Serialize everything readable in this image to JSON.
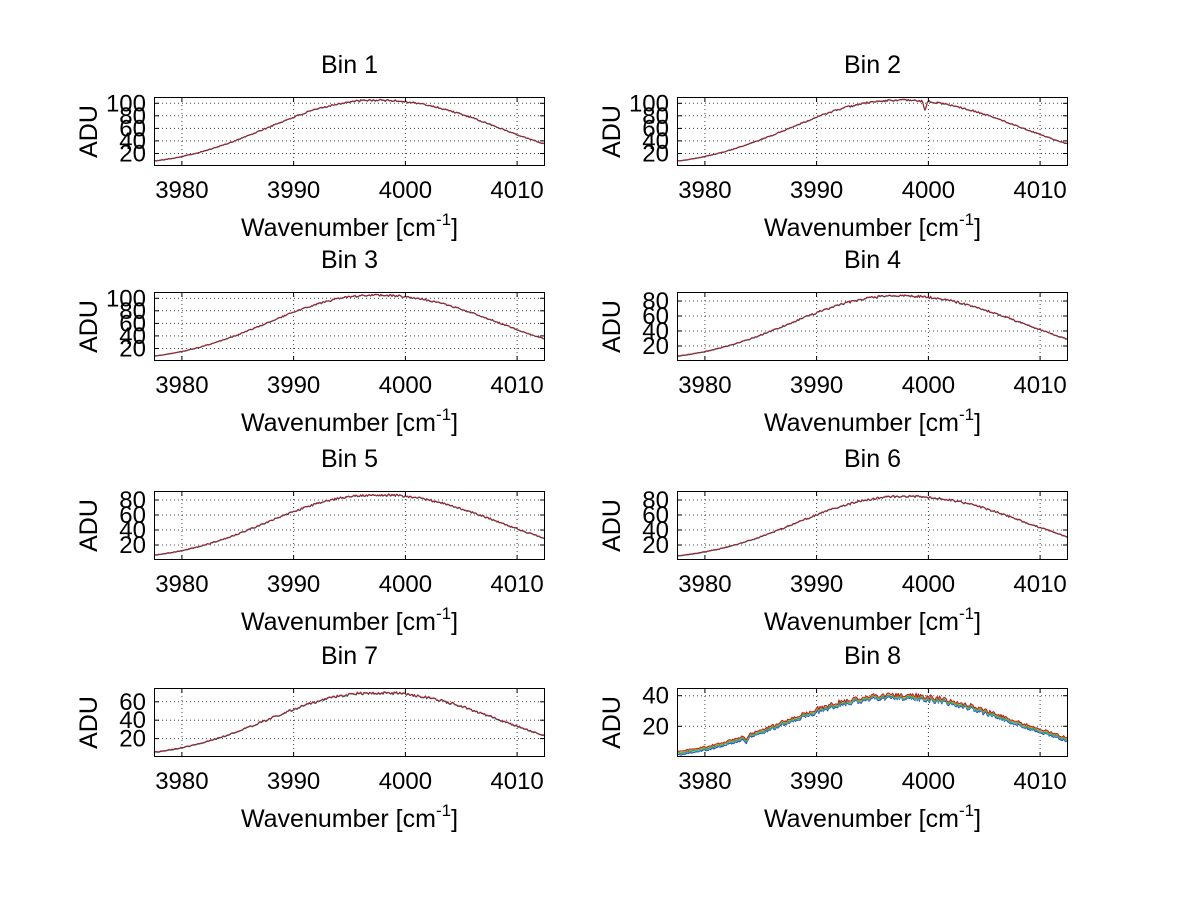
{
  "chart_data": {
    "type": "line",
    "layout": {
      "rows": 4,
      "cols": 2,
      "grid": true,
      "grid_style": "dotted",
      "background": "#ffffff",
      "legend": "none"
    },
    "xlabel_display": "Wavenumber [cm⁻¹]",
    "xlabel_parts": {
      "base": "Wavenumber [cm",
      "superscript": "-1",
      "close": "]"
    },
    "ylabel": "ADU",
    "xlim": [
      3977.5,
      4012.5
    ],
    "xticks": [
      3980,
      3990,
      4000,
      4010
    ],
    "curve_model": {
      "shape": "flat-top gaussian with noise",
      "center": 3997.5,
      "sigma_left": 9.5,
      "sigma_right": 10.5,
      "exponent": 2.2,
      "noise_adu_at_peak": 1.5
    },
    "traces_main": [
      {
        "name": "cyan-trace",
        "color": "#20b2b2",
        "dy": -0.5
      },
      {
        "name": "green-trace",
        "color": "#22992e",
        "dy": -0.35
      },
      {
        "name": "blue-trace",
        "color": "#2828b8",
        "dy": -0.18
      },
      {
        "name": "red-trace",
        "color": "#b22222",
        "dy": 0
      }
    ],
    "traces_spread": [
      {
        "name": "blue-trace",
        "color": "#2836c0",
        "dy": -2.3
      },
      {
        "name": "cyan-trace",
        "color": "#28b8c8",
        "dy": -1.7
      },
      {
        "name": "green-trace",
        "color": "#2ea04a",
        "dy": -1.1
      },
      {
        "name": "orange-trace",
        "color": "#d8a020",
        "dy": -0.55
      },
      {
        "name": "red-trace",
        "color": "#b22222",
        "dy": 0
      }
    ],
    "subplots": [
      {
        "title": "Bin 1",
        "ylim": [
          0,
          110
        ],
        "yticks": [
          20,
          40,
          60,
          80,
          100
        ],
        "peak_adu": 105,
        "peak_position": 3997.5,
        "right_edge_adu": 38,
        "seed": 101,
        "spread": false,
        "features": []
      },
      {
        "title": "Bin 2",
        "ylim": [
          0,
          110
        ],
        "yticks": [
          20,
          40,
          60,
          80,
          100
        ],
        "peak_adu": 105,
        "peak_position": 3997.5,
        "right_edge_adu": 37,
        "seed": 202,
        "spread": false,
        "features": [
          {
            "x": 3999.7,
            "width": 0.16,
            "amp": -13,
            "note": "sharp downward spike"
          }
        ]
      },
      {
        "title": "Bin 3",
        "ylim": [
          0,
          110
        ],
        "yticks": [
          20,
          40,
          60,
          80,
          100
        ],
        "peak_adu": 105,
        "peak_position": 3997.5,
        "right_edge_adu": 36,
        "seed": 303,
        "spread": false,
        "features": []
      },
      {
        "title": "Bin 4",
        "ylim": [
          0,
          92
        ],
        "yticks": [
          20,
          40,
          60,
          80
        ],
        "peak_adu": 87,
        "peak_position": 3997.5,
        "right_edge_adu": 32,
        "seed": 404,
        "spread": false,
        "features": []
      },
      {
        "title": "Bin 5",
        "ylim": [
          0,
          92
        ],
        "yticks": [
          20,
          40,
          60,
          80
        ],
        "peak_adu": 87,
        "peak_position": 3997.5,
        "right_edge_adu": 31,
        "seed": 505,
        "spread": false,
        "features": []
      },
      {
        "title": "Bin 6",
        "ylim": [
          0,
          92
        ],
        "yticks": [
          20,
          40,
          60,
          80
        ],
        "peak_adu": 85,
        "peak_position": 3998.0,
        "right_edge_adu": 30,
        "seed": 606,
        "spread": false,
        "features": []
      },
      {
        "title": "Bin 7",
        "ylim": [
          0,
          75
        ],
        "yticks": [
          20,
          40,
          60
        ],
        "peak_adu": 70,
        "peak_position": 3997.5,
        "right_edge_adu": 25,
        "seed": 707,
        "spread": false,
        "features": []
      },
      {
        "title": "Bin 8",
        "ylim": [
          0,
          45
        ],
        "yticks": [
          20,
          40
        ],
        "peak_adu": 40.5,
        "peak_position": 3997.0,
        "right_edge_adu": 12,
        "seed": 808,
        "spread": true,
        "features": [
          {
            "x": 3983.7,
            "width": 0.14,
            "amp": -2.5,
            "note": "small notch on rising edge"
          }
        ]
      }
    ]
  },
  "colors": {
    "axis": "#000000",
    "grid": "#444444",
    "text": "#000000",
    "background": "#ffffff"
  }
}
